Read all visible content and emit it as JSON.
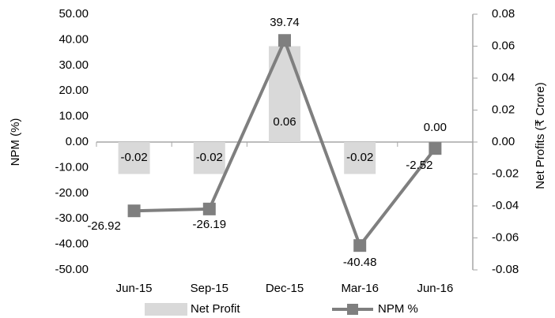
{
  "chart_data": {
    "type": "bar",
    "categories": [
      "Jun-15",
      "Sep-15",
      "Dec-15",
      "Mar-16",
      "Jun-16"
    ],
    "series": [
      {
        "name": "Net Profit",
        "type": "bar",
        "axis": "y2",
        "color": "#d9d9d9",
        "values": [
          -0.02,
          -0.02,
          0.06,
          -0.02,
          0
        ],
        "value_labels": [
          "-0.02",
          "-0.02",
          "0.06",
          "-0.02",
          "0.00"
        ]
      },
      {
        "name": "NPM %",
        "type": "line",
        "color": "#7f7f7f",
        "values": [
          -26.92,
          -26.19,
          39.74,
          -40.48,
          -2.52
        ]
      }
    ],
    "ylabel": "NPM (%)",
    "y2label": "Net Profits (₹ Crore)",
    "ylim": [
      -50,
      50
    ],
    "yticks": [
      {
        "value": 50,
        "label": "50.00"
      },
      {
        "value": 40,
        "label": "40.00"
      },
      {
        "value": 30,
        "label": "30.00"
      },
      {
        "value": 20,
        "label": "20.00"
      },
      {
        "value": 10,
        "label": "10.00"
      },
      {
        "value": 0,
        "label": "0.00"
      },
      {
        "value": -10,
        "label": "-10.00"
      },
      {
        "value": -20,
        "label": "-20.00"
      },
      {
        "value": -30,
        "label": "-30.00"
      },
      {
        "value": -40,
        "label": "-40.00"
      },
      {
        "value": -50,
        "label": "-50.00"
      }
    ],
    "y2lim": [
      -0.08,
      0.08
    ],
    "y2ticks": [
      0.08,
      0.06,
      0.04,
      0.02,
      {
        "value": 0,
        "label": "0.00"
      },
      -0.02,
      -0.04,
      -0.06,
      -0.08
    ],
    "legend": "bottom"
  }
}
